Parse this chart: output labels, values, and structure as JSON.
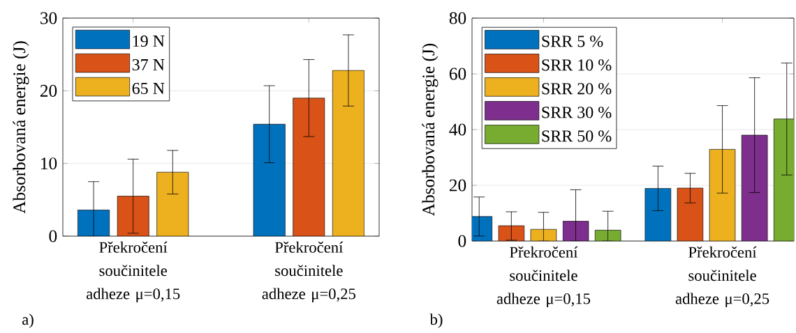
{
  "chart_data": [
    {
      "type": "bar",
      "ylabel": "Absorbovaná energie (J)",
      "categories": [
        "Překročení součinitele adheze μ=0,15",
        "Překročení součinitele adheze μ=0,25"
      ],
      "ylim": [
        0,
        30
      ],
      "yticks": [
        0,
        10,
        20,
        30
      ],
      "grid": "y",
      "legend": "top left",
      "annotations": [
        "a)"
      ],
      "series": [
        {
          "name": "19 N",
          "color": "#0072bd",
          "values": [
            3.6,
            15.4
          ],
          "errors": [
            [
              0,
              7.5
            ],
            5.3
          ]
        },
        {
          "name": "37 N",
          "color": "#d95319",
          "values": [
            5.5,
            19.0
          ],
          "errors": [
            [
              0.4,
              10.6
            ],
            5.3
          ]
        },
        {
          "name": "65 N",
          "color": "#edb120",
          "values": [
            8.8,
            22.8
          ],
          "errors": [
            3.0,
            4.9
          ]
        }
      ]
    },
    {
      "type": "bar",
      "ylabel": "Absorbovaná energie (J)",
      "categories": [
        "Překročení součinitele adheze μ=0,15",
        "Překročení součinitele adheze μ=0,25"
      ],
      "ylim": [
        0,
        80
      ],
      "yticks": [
        0,
        20,
        40,
        60,
        80
      ],
      "grid": "y",
      "legend": "top left",
      "annotations": [
        "b)"
      ],
      "series": [
        {
          "name": "SRR 5 %",
          "color": "#0072bd",
          "values": [
            8.8,
            18.9
          ],
          "errors": [
            7,
            8
          ]
        },
        {
          "name": "SRR 10 %",
          "color": "#d95319",
          "values": [
            5.5,
            19.0
          ],
          "errors": [
            [
              0.3,
              10.5
            ],
            5.3
          ]
        },
        {
          "name": "SRR 20 %",
          "color": "#edb120",
          "values": [
            4.2,
            32.9
          ],
          "errors": [
            [
              0,
              10.3
            ],
            15.7
          ]
        },
        {
          "name": "SRR 30 %",
          "color": "#7e2f8e",
          "values": [
            7.1,
            38.0
          ],
          "errors": [
            [
              0,
              18.4
            ],
            20.6
          ]
        },
        {
          "name": "SRR 50 %",
          "color": "#77ac30",
          "values": [
            3.9,
            43.8
          ],
          "errors": [
            [
              0,
              10.7
            ],
            20.1
          ]
        }
      ]
    }
  ]
}
